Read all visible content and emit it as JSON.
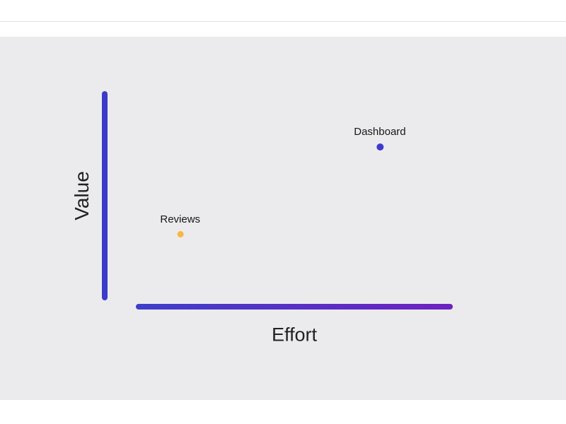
{
  "app": {
    "background_color": "#ebebee",
    "top_bar_color": "#ffffff"
  },
  "chart_data": {
    "type": "scatter",
    "title": "",
    "xlabel": "Effort",
    "ylabel": "Value",
    "x_range": [
      0,
      1
    ],
    "y_range": [
      0,
      1
    ],
    "grid": false,
    "legend": false,
    "axis_style": {
      "y_axis_color": "#3b3bc9",
      "x_axis_gradient": [
        "#3e3ecb",
        "#6f22c1"
      ]
    },
    "points": [
      {
        "label": "Dashboard",
        "x": 0.77,
        "y": 0.72,
        "color": "#3d3acd",
        "size": 10
      },
      {
        "label": "Reviews",
        "x": 0.14,
        "y": 0.31,
        "color": "#fbb63f",
        "size": 9
      }
    ]
  }
}
